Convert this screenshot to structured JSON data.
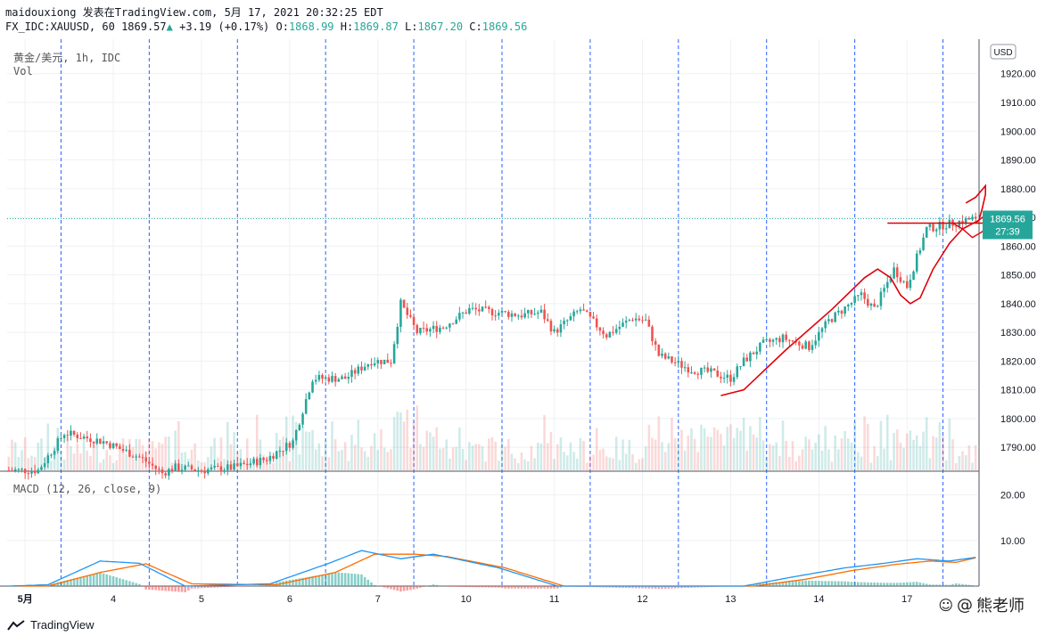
{
  "header": {
    "author": "maidouxiong",
    "published_text": "发表在TradingView.com,",
    "date_text": "5月 17, 2021 20:32:25 EDT",
    "symbol": "FX_IDC:XAUUSD, 60",
    "last": "1869.57",
    "change": "+3.19",
    "change_pct": "(+0.17%)",
    "o_label": "O:",
    "o_value": "1868.99",
    "h_label": "H:",
    "h_value": "1869.87",
    "l_label": "L:",
    "l_value": "1867.20",
    "c_label": "C:",
    "c_value": "1869.56"
  },
  "legend": {
    "title": "黄金/美元, 1h, IDC",
    "volume": "Vol",
    "macd": "MACD (12, 26, close, 9)"
  },
  "currency": "USD",
  "price_tag": {
    "value": "1869.56",
    "countdown": "27:39"
  },
  "brand": "TradingView",
  "watermark": "熊老师",
  "colors": {
    "up": "#26a69a",
    "down": "#ef5350",
    "grid": "#eef0f3",
    "session": "#2962ff",
    "annotation": "#e0000a",
    "macd": "#2196f3",
    "signal": "#ff6d00",
    "tag": "#26a69a"
  },
  "chart_data": [
    {
      "type": "candlestick",
      "title": "黄金/美元, 1h, IDC",
      "ylabel": "USD",
      "ylim": [
        1782,
        1932
      ],
      "yticks": [
        1790,
        1800,
        1810,
        1820,
        1830,
        1840,
        1850,
        1860,
        1870,
        1880,
        1890,
        1900,
        1910,
        1920
      ],
      "x_labels": [
        "5月",
        "4",
        "5",
        "6",
        "7",
        "10",
        "11",
        "12",
        "13",
        "14",
        "17"
      ],
      "last_price": 1869.56,
      "path_keypoints": [
        [
          0,
          1782
        ],
        [
          10,
          1782
        ],
        [
          18,
          1795
        ],
        [
          30,
          1792
        ],
        [
          42,
          1786
        ],
        [
          48,
          1781
        ],
        [
          52,
          1783
        ],
        [
          60,
          1782
        ],
        [
          70,
          1783
        ],
        [
          80,
          1786
        ],
        [
          88,
          1792
        ],
        [
          94,
          1814
        ],
        [
          104,
          1814
        ],
        [
          112,
          1820
        ],
        [
          118,
          1820
        ],
        [
          121,
          1840
        ],
        [
          126,
          1830
        ],
        [
          134,
          1832
        ],
        [
          142,
          1838
        ],
        [
          150,
          1837
        ],
        [
          158,
          1836
        ],
        [
          164,
          1837
        ],
        [
          168,
          1830
        ],
        [
          176,
          1838
        ],
        [
          184,
          1829
        ],
        [
          192,
          1835
        ],
        [
          196,
          1834
        ],
        [
          200,
          1822
        ],
        [
          210,
          1817
        ],
        [
          216,
          1816
        ],
        [
          222,
          1814
        ],
        [
          226,
          1820
        ],
        [
          232,
          1826
        ],
        [
          238,
          1828
        ],
        [
          246,
          1825
        ],
        [
          252,
          1834
        ],
        [
          262,
          1843
        ],
        [
          266,
          1838
        ],
        [
          272,
          1852
        ],
        [
          276,
          1846
        ],
        [
          282,
          1866
        ],
        [
          290,
          1868
        ],
        [
          296,
          1869.56
        ]
      ],
      "volume_profile": "light, taller near sessions 6-7 and 12-14"
    },
    {
      "type": "line",
      "title": "MACD (12, 26, close, 9)",
      "ylim": [
        0,
        25
      ],
      "yticks": [
        10,
        20
      ],
      "series": [
        {
          "name": "MACD",
          "keypoints": [
            [
              0,
              0
            ],
            [
              12,
              0.3
            ],
            [
              28,
              5.5
            ],
            [
              40,
              5
            ],
            [
              54,
              0
            ],
            [
              80,
              0.5
            ],
            [
              98,
              5
            ],
            [
              108,
              7.8
            ],
            [
              120,
              6
            ],
            [
              130,
              7
            ],
            [
              150,
              4
            ],
            [
              168,
              0
            ],
            [
              200,
              -1
            ],
            [
              225,
              0
            ],
            [
              240,
              2
            ],
            [
              256,
              4
            ],
            [
              268,
              5
            ],
            [
              278,
              6
            ],
            [
              288,
              5.5
            ],
            [
              296,
              6.3
            ]
          ]
        },
        {
          "name": "Signal",
          "keypoints": [
            [
              0,
              0
            ],
            [
              12,
              0
            ],
            [
              28,
              3
            ],
            [
              42,
              4.9
            ],
            [
              56,
              0.5
            ],
            [
              82,
              0.3
            ],
            [
              100,
              3
            ],
            [
              112,
              7
            ],
            [
              124,
              7
            ],
            [
              134,
              6.5
            ],
            [
              152,
              4
            ],
            [
              170,
              0
            ],
            [
              200,
              -0.5
            ],
            [
              228,
              0
            ],
            [
              244,
              1.5
            ],
            [
              258,
              3.4
            ],
            [
              272,
              4.8
            ],
            [
              282,
              5.5
            ],
            [
              290,
              5.2
            ],
            [
              296,
              6.2
            ]
          ]
        }
      ]
    }
  ]
}
